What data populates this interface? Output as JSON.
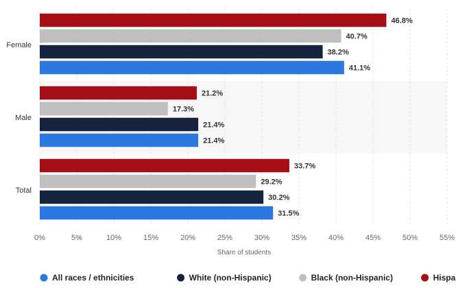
{
  "chart_data": {
    "type": "bar",
    "orientation": "horizontal",
    "title": "",
    "xlabel": "Share of students",
    "ylabel": "",
    "xlim": [
      0,
      55
    ],
    "tick_step": 5,
    "tick_labels": [
      "0%",
      "5%",
      "10%",
      "15%",
      "20%",
      "25%",
      "30%",
      "35%",
      "40%",
      "45%",
      "50%",
      "55%"
    ],
    "grid": true,
    "legend_position": "bottom",
    "categories": [
      "Female",
      "Male",
      "Total"
    ],
    "series": [
      {
        "name": "Hispanic",
        "color": "#a50e14",
        "values": [
          46.8,
          21.2,
          33.7
        ],
        "labels": [
          "46.8%",
          "21.2%",
          "33.7%"
        ]
      },
      {
        "name": "Black (non-Hispanic)",
        "color": "#bfbfbf",
        "values": [
          40.7,
          17.3,
          29.2
        ],
        "labels": [
          "40.7%",
          "17.3%",
          "29.2%"
        ]
      },
      {
        "name": "White (non-Hispanic)",
        "color": "#14243e",
        "values": [
          38.2,
          21.4,
          30.2
        ],
        "labels": [
          "38.2%",
          "21.4%",
          "30.2%"
        ]
      },
      {
        "name": "All races / ethnicities",
        "color": "#2d78e0",
        "values": [
          41.1,
          21.4,
          31.5
        ],
        "labels": [
          "41.1%",
          "21.4%",
          "31.5%"
        ]
      }
    ],
    "legend_order": [
      "All races / ethnicities",
      "White (non-Hispanic)",
      "Black (non-Hispanic)",
      "Hispanic"
    ]
  }
}
